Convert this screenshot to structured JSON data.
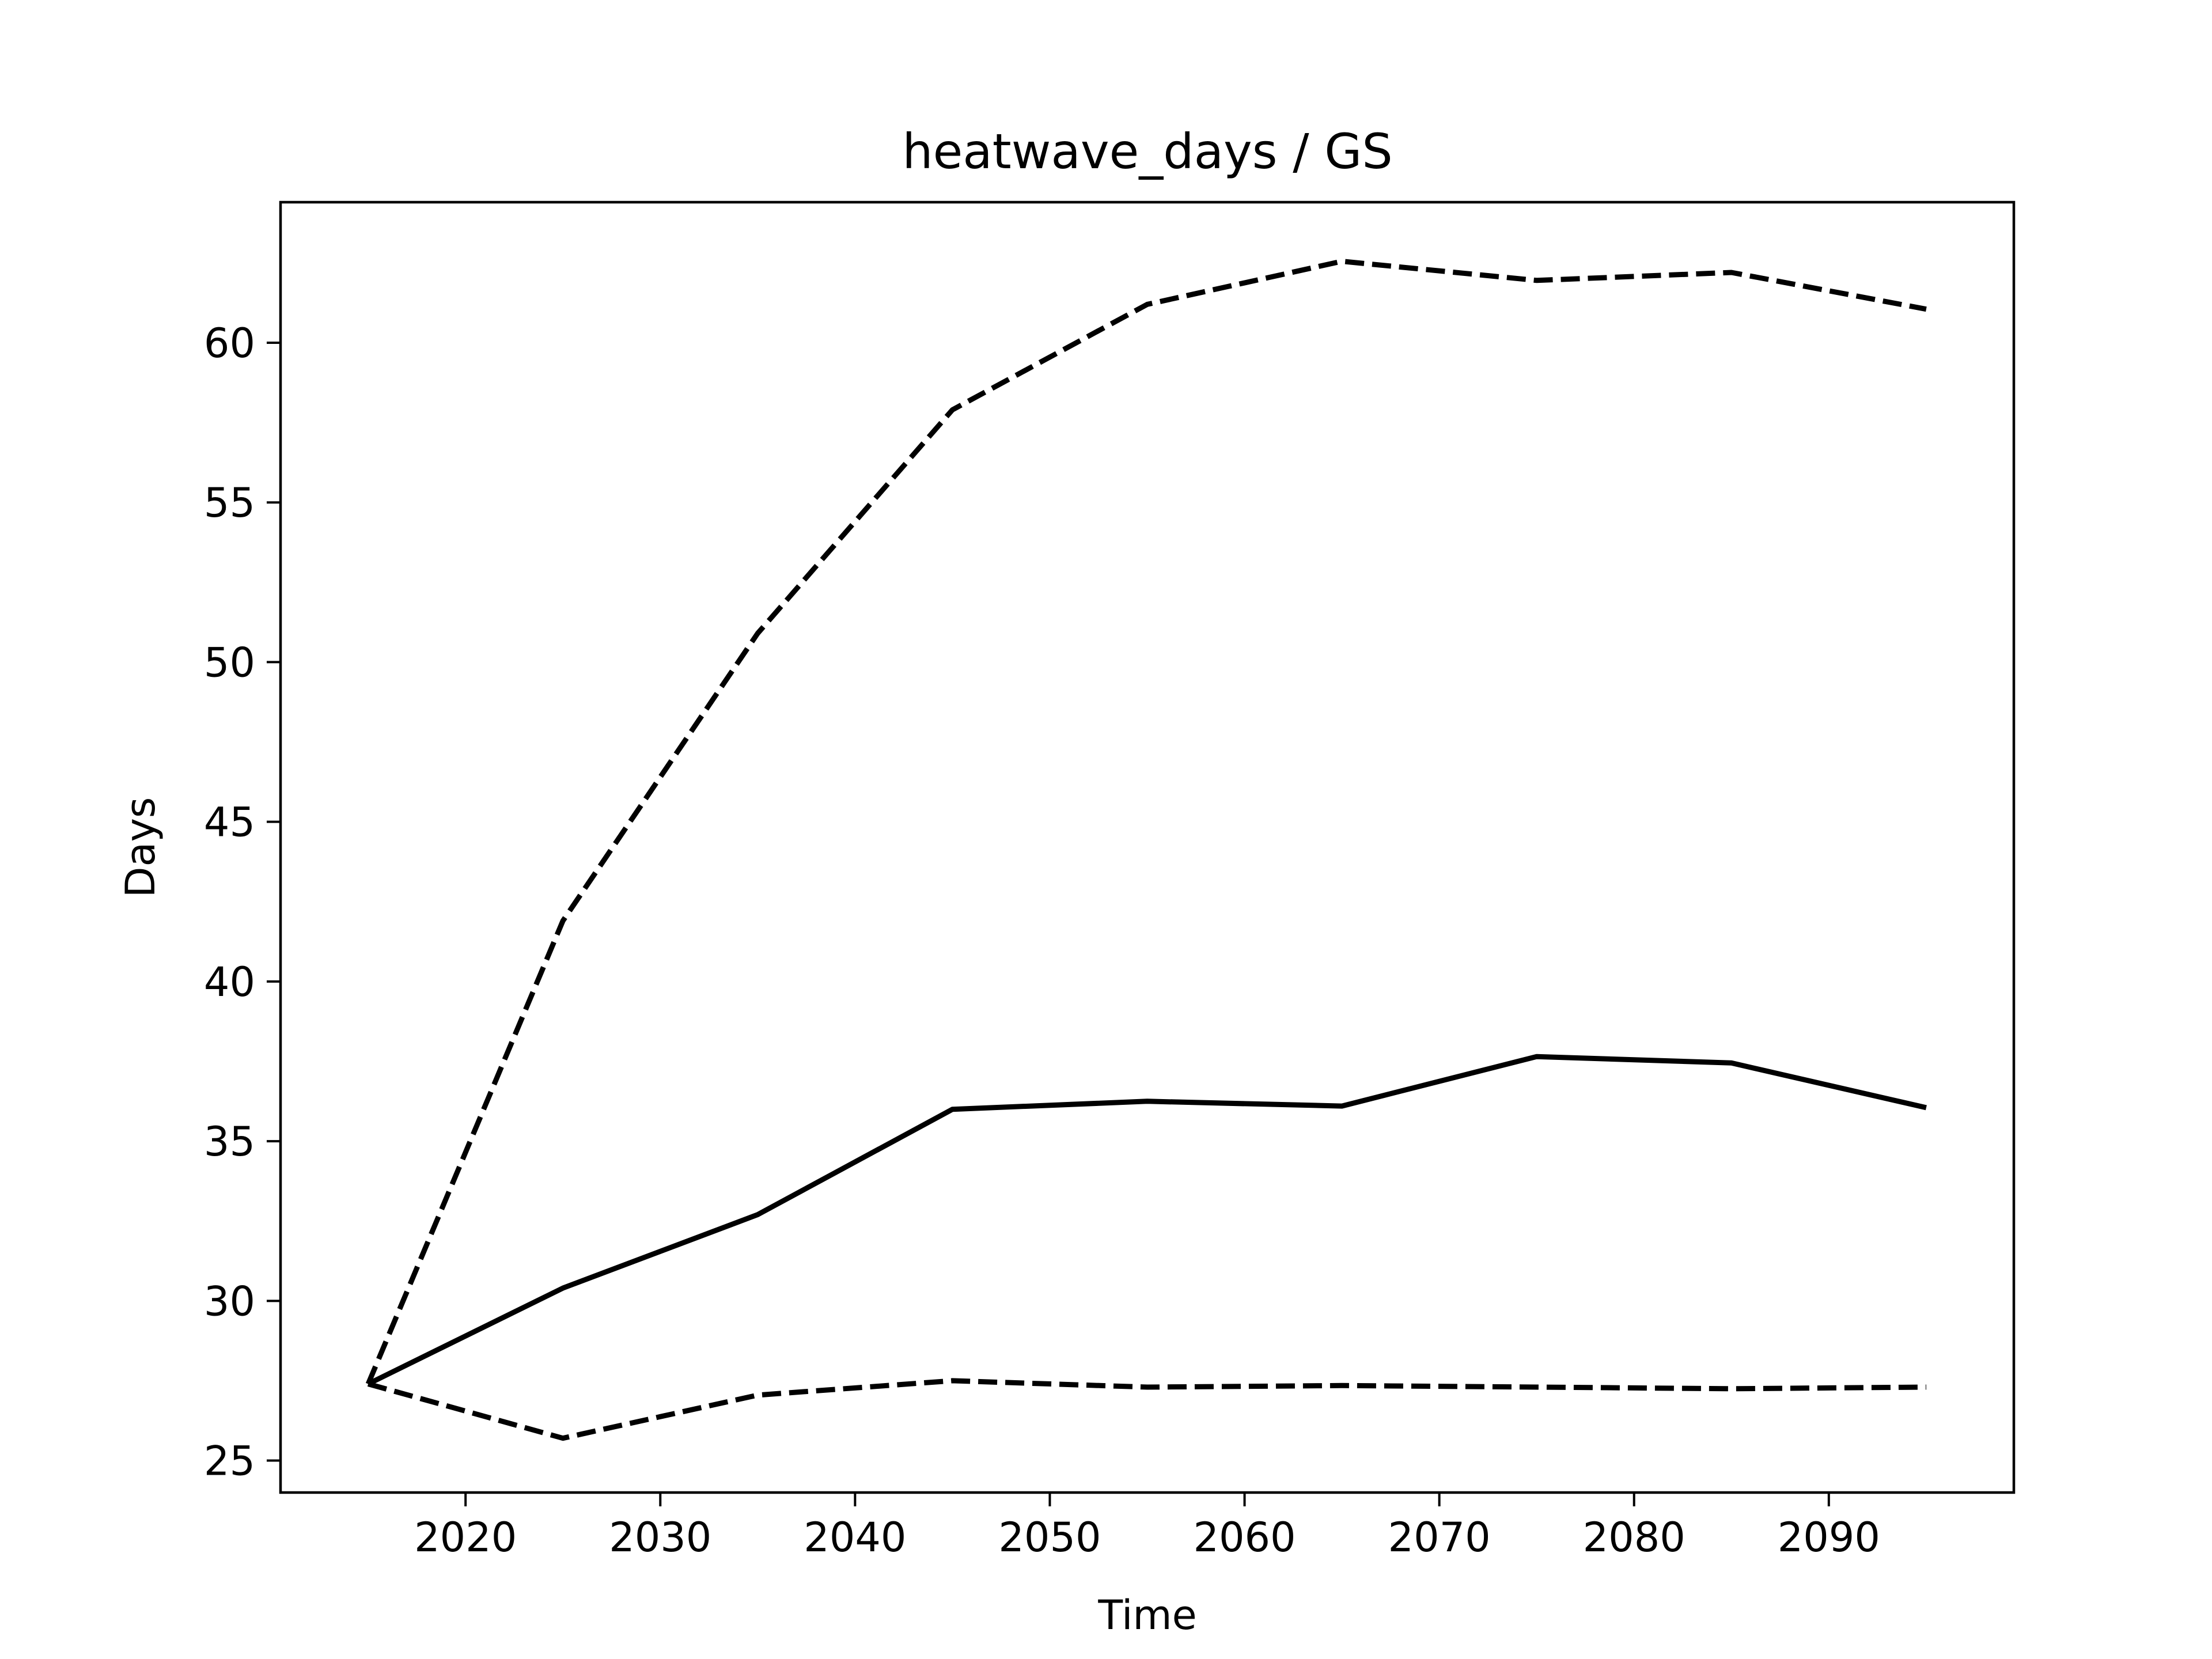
{
  "chart_data": {
    "type": "line",
    "title": "heatwave_days / GS",
    "xlabel": "Time",
    "ylabel": "Days",
    "xlim": [
      2010.5,
      2099.5
    ],
    "ylim": [
      24.0,
      64.4
    ],
    "xticks": [
      2020,
      2030,
      2040,
      2050,
      2060,
      2070,
      2080,
      2090
    ],
    "yticks": [
      25,
      30,
      35,
      40,
      45,
      50,
      55,
      60
    ],
    "grid": false,
    "legend": "none",
    "x": [
      2015,
      2025,
      2035,
      2045,
      2055,
      2065,
      2075,
      2085,
      2095
    ],
    "series": [
      {
        "style": "solid",
        "color": "#000000",
        "values": [
          27.4,
          30.4,
          32.7,
          36.0,
          36.25,
          36.1,
          37.65,
          37.45,
          36.05
        ]
      },
      {
        "style": "dashed",
        "color": "#000000",
        "values": [
          27.4,
          41.9,
          50.9,
          57.9,
          61.2,
          62.55,
          61.95,
          62.2,
          61.05
        ]
      },
      {
        "style": "dashed",
        "color": "#000000",
        "values": [
          27.4,
          25.7,
          27.05,
          27.5,
          27.3,
          27.35,
          27.3,
          27.25,
          27.3
        ]
      }
    ]
  }
}
